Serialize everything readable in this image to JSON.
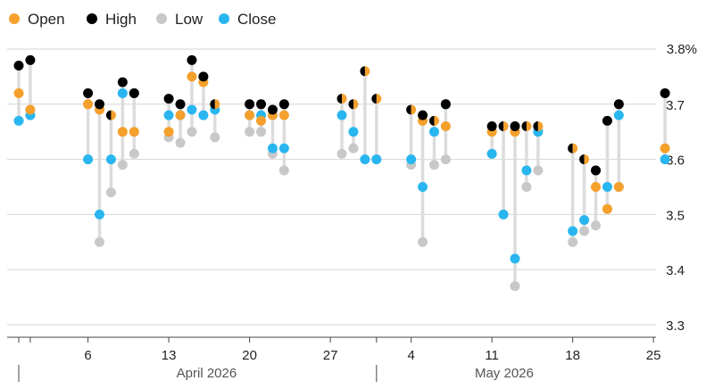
{
  "chart_data": {
    "type": "ohlc-dot",
    "legend": [
      {
        "key": "open",
        "label": "Open",
        "color": "#F5A02C"
      },
      {
        "key": "high",
        "label": "High",
        "color": "#000000"
      },
      {
        "key": "low",
        "label": "Low",
        "color": "#C8C8C8"
      },
      {
        "key": "close",
        "label": "Close",
        "color": "#29B6F0"
      }
    ],
    "y_axis": {
      "min": 3.3,
      "max": 3.8,
      "ticks": [
        3.3,
        3.4,
        3.5,
        3.6,
        3.7
      ],
      "tick_labels": [
        "3.3",
        "3.4",
        "3.5",
        "3.6",
        "3.7"
      ],
      "top_label": "3.8%"
    },
    "x_axis": {
      "ticks": [
        {
          "date": "2026-04-06",
          "label": "6"
        },
        {
          "date": "2026-04-13",
          "label": "13"
        },
        {
          "date": "2026-04-20",
          "label": "20"
        },
        {
          "date": "2026-04-27",
          "label": "27"
        },
        {
          "date": "2026-05-04",
          "label": "4"
        },
        {
          "date": "2026-05-11",
          "label": "11"
        },
        {
          "date": "2026-05-18",
          "label": "18"
        },
        {
          "date": "2026-05-25",
          "label": "25"
        }
      ],
      "months": [
        {
          "start": "2026-04-01",
          "label": "April 2026"
        },
        {
          "start": "2026-05-01",
          "label": "May 2026"
        }
      ],
      "start": "2026-03-31",
      "end": "2026-05-27"
    },
    "data": [
      {
        "date": "2026-03-31",
        "open": 3.72,
        "high": 3.77,
        "low": 3.67,
        "close": 3.67
      },
      {
        "date": "2026-04-01",
        "open": 3.69,
        "high": 3.78,
        "low": 3.68,
        "close": 3.68
      },
      {
        "date": "2026-04-06",
        "open": 3.7,
        "high": 3.72,
        "low": 3.6,
        "close": 3.6
      },
      {
        "date": "2026-04-07",
        "open": 3.69,
        "high": 3.7,
        "low": 3.45,
        "close": 3.5
      },
      {
        "date": "2026-04-08",
        "open": 3.68,
        "high": 3.68,
        "low": 3.54,
        "close": 3.6
      },
      {
        "date": "2026-04-09",
        "open": 3.65,
        "high": 3.74,
        "low": 3.59,
        "close": 3.72
      },
      {
        "date": "2026-04-10",
        "open": 3.65,
        "high": 3.72,
        "low": 3.61,
        "close": 3.72
      },
      {
        "date": "2026-04-13",
        "open": 3.65,
        "high": 3.71,
        "low": 3.64,
        "close": 3.68
      },
      {
        "date": "2026-04-14",
        "open": 3.68,
        "high": 3.7,
        "low": 3.63,
        "close": 3.68
      },
      {
        "date": "2026-04-15",
        "open": 3.75,
        "high": 3.78,
        "low": 3.65,
        "close": 3.69
      },
      {
        "date": "2026-04-16",
        "open": 3.74,
        "high": 3.75,
        "low": 3.68,
        "close": 3.68
      },
      {
        "date": "2026-04-17",
        "open": 3.7,
        "high": 3.7,
        "low": 3.64,
        "close": 3.69
      },
      {
        "date": "2026-04-20",
        "open": 3.68,
        "high": 3.7,
        "low": 3.65,
        "close": 3.68
      },
      {
        "date": "2026-04-21",
        "open": 3.67,
        "high": 3.7,
        "low": 3.65,
        "close": 3.68
      },
      {
        "date": "2026-04-22",
        "open": 3.68,
        "high": 3.69,
        "low": 3.61,
        "close": 3.62
      },
      {
        "date": "2026-04-23",
        "open": 3.68,
        "high": 3.7,
        "low": 3.58,
        "close": 3.62
      },
      {
        "date": "2026-04-28",
        "open": 3.71,
        "high": 3.71,
        "low": 3.61,
        "close": 3.68
      },
      {
        "date": "2026-04-29",
        "open": 3.7,
        "high": 3.7,
        "low": 3.62,
        "close": 3.65
      },
      {
        "date": "2026-04-30",
        "open": 3.76,
        "high": 3.76,
        "low": 3.6,
        "close": 3.6
      },
      {
        "date": "2026-05-01",
        "open": 3.71,
        "high": 3.71,
        "low": 3.6,
        "close": 3.6
      },
      {
        "date": "2026-05-04",
        "open": 3.69,
        "high": 3.69,
        "low": 3.59,
        "close": 3.6
      },
      {
        "date": "2026-05-05",
        "open": 3.67,
        "high": 3.68,
        "low": 3.45,
        "close": 3.55
      },
      {
        "date": "2026-05-06",
        "open": 3.67,
        "high": 3.67,
        "low": 3.59,
        "close": 3.65
      },
      {
        "date": "2026-05-07",
        "open": 3.66,
        "high": 3.7,
        "low": 3.6,
        "close": 3.7
      },
      {
        "date": "2026-05-11",
        "open": 3.65,
        "high": 3.66,
        "low": 3.61,
        "close": 3.61
      },
      {
        "date": "2026-05-12",
        "open": 3.66,
        "high": 3.66,
        "low": 3.5,
        "close": 3.5
      },
      {
        "date": "2026-05-13",
        "open": 3.65,
        "high": 3.66,
        "low": 3.37,
        "close": 3.42
      },
      {
        "date": "2026-05-14",
        "open": 3.66,
        "high": 3.66,
        "low": 3.55,
        "close": 3.58
      },
      {
        "date": "2026-05-15",
        "open": 3.66,
        "high": 3.66,
        "low": 3.58,
        "close": 3.65
      },
      {
        "date": "2026-05-18",
        "open": 3.62,
        "high": 3.62,
        "low": 3.45,
        "close": 3.47
      },
      {
        "date": "2026-05-19",
        "open": 3.6,
        "high": 3.6,
        "low": 3.47,
        "close": 3.49
      },
      {
        "date": "2026-05-20",
        "open": 3.55,
        "high": 3.58,
        "low": 3.48,
        "close": 3.58
      },
      {
        "date": "2026-05-21",
        "open": 3.51,
        "high": 3.67,
        "low": 3.51,
        "close": 3.55
      },
      {
        "date": "2026-05-22",
        "open": 3.55,
        "high": 3.7,
        "low": 3.55,
        "close": 3.68
      },
      {
        "date": "2026-05-26",
        "open": 3.62,
        "high": 3.72,
        "low": 3.6,
        "close": 3.6
      }
    ]
  }
}
